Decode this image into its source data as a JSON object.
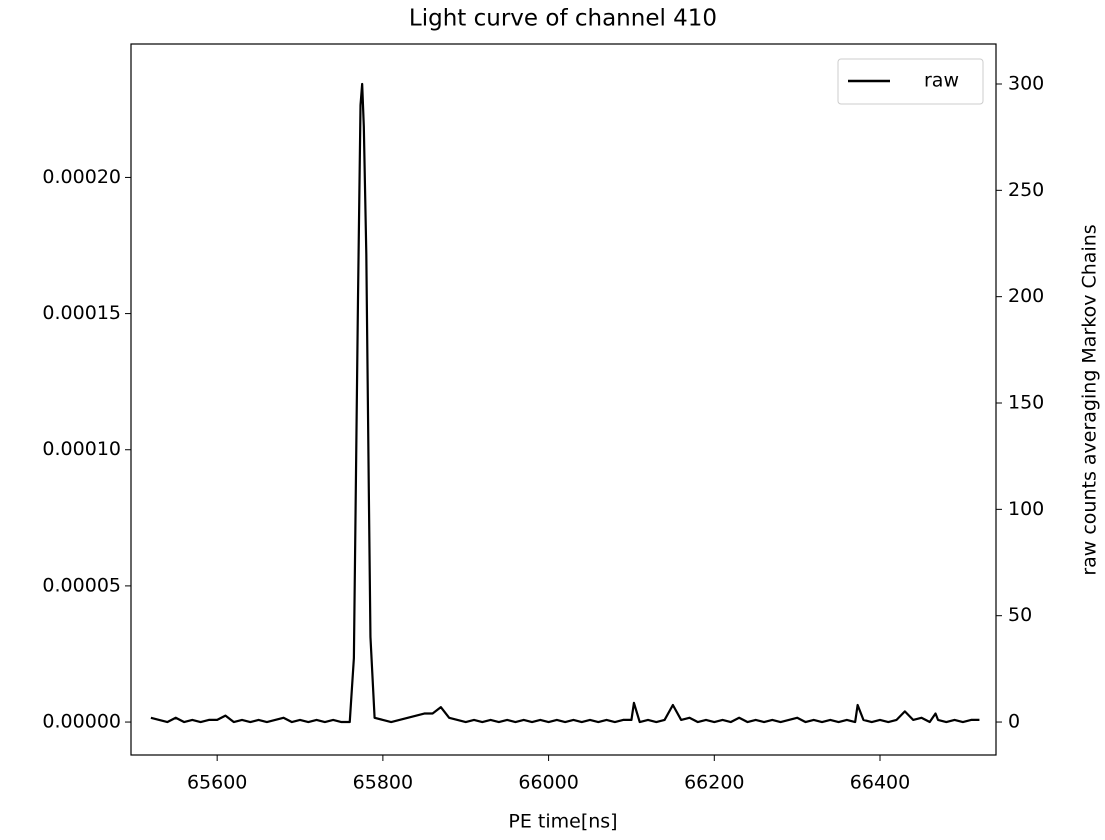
{
  "chart_data": {
    "type": "line",
    "title": "Light curve of channel 410",
    "x_label": "PE time[ns]",
    "y2_label": "raw counts averaging Markov Chains",
    "x": [
      65520,
      65530,
      65540,
      65550,
      65560,
      65570,
      65580,
      65590,
      65600,
      65610,
      65620,
      65630,
      65640,
      65650,
      65660,
      65670,
      65680,
      65690,
      65700,
      65710,
      65720,
      65730,
      65740,
      65750,
      65760,
      65765,
      65770,
      65773,
      65775,
      65777,
      65780,
      65783,
      65785,
      65790,
      65800,
      65810,
      65820,
      65830,
      65840,
      65850,
      65860,
      65870,
      65880,
      65890,
      65900,
      65910,
      65920,
      65930,
      65940,
      65950,
      65960,
      65970,
      65980,
      65990,
      66000,
      66010,
      66020,
      66030,
      66040,
      66050,
      66060,
      66070,
      66080,
      66090,
      66100,
      66103,
      66110,
      66120,
      66130,
      66140,
      66150,
      66160,
      66170,
      66180,
      66190,
      66200,
      66210,
      66220,
      66230,
      66240,
      66250,
      66260,
      66270,
      66280,
      66290,
      66300,
      66310,
      66320,
      66330,
      66340,
      66350,
      66360,
      66370,
      66373,
      66380,
      66390,
      66400,
      66410,
      66420,
      66430,
      66440,
      66450,
      66460,
      66467,
      66470,
      66480,
      66490,
      66500,
      66510,
      66520
    ],
    "series": [
      {
        "name": "raw",
        "color": "#000000",
        "axis": "y2",
        "values": [
          2,
          1,
          0,
          2,
          0,
          1,
          0,
          1,
          1,
          3,
          0,
          1,
          0,
          1,
          0,
          1,
          2,
          0,
          1,
          0,
          1,
          0,
          1,
          0,
          0,
          30,
          200,
          290,
          300,
          280,
          220,
          110,
          40,
          2,
          1,
          0,
          1,
          2,
          3,
          4,
          4,
          7,
          2,
          1,
          0,
          1,
          0,
          1,
          0,
          1,
          0,
          1,
          0,
          1,
          0,
          1,
          0,
          1,
          0,
          1,
          0,
          1,
          0,
          1,
          1,
          9,
          0,
          1,
          0,
          1,
          8,
          1,
          2,
          0,
          1,
          0,
          1,
          0,
          2,
          0,
          1,
          0,
          1,
          0,
          1,
          2,
          0,
          1,
          0,
          1,
          0,
          1,
          0,
          8,
          1,
          0,
          1,
          0,
          1,
          5,
          1,
          2,
          0,
          4,
          1,
          0,
          1,
          0,
          1,
          1
        ]
      }
    ],
    "xlim": [
      65496,
      66540
    ],
    "xticks": [
      65600,
      65800,
      66000,
      66200,
      66400
    ],
    "ylim": [
      -1.21e-05,
      0.000249
    ],
    "yticks": [
      {
        "value": 0,
        "label": "0.00000"
      },
      {
        "value": 5e-05,
        "label": "0.00005"
      },
      {
        "value": 0.0001,
        "label": "0.00010"
      },
      {
        "value": 0.00015,
        "label": "0.00015"
      },
      {
        "value": 0.0002,
        "label": "0.00020"
      }
    ],
    "y2lim": [
      -15.5,
      318.8
    ],
    "y2ticks": [
      0,
      50,
      100,
      150,
      200,
      250,
      300
    ],
    "legend": "upper right"
  }
}
